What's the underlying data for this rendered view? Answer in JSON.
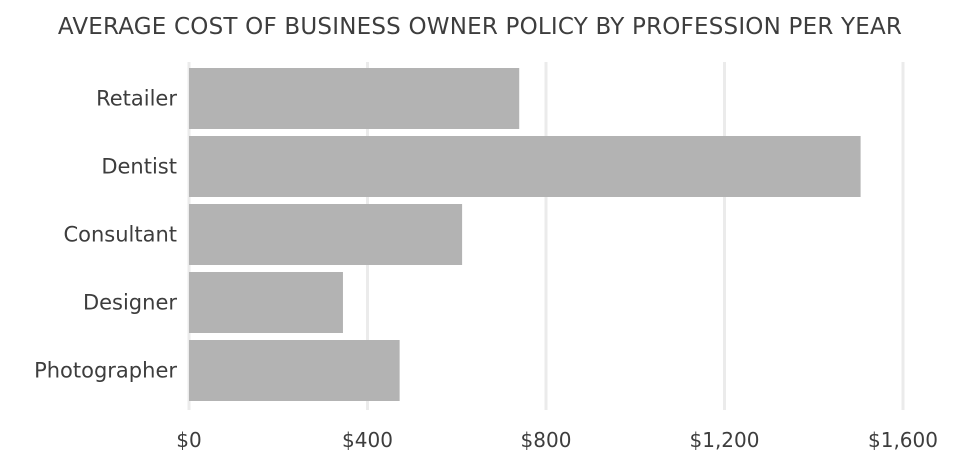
{
  "chart_data": {
    "type": "bar",
    "orientation": "horizontal",
    "title": "AVERAGE COST OF BUSINESS OWNER POLICY BY PROFESSION PER YEAR",
    "categories": [
      "Retailer",
      "Dentist",
      "Consultant",
      "Designer",
      "Photographer"
    ],
    "values": [
      740,
      1505,
      612,
      345,
      472
    ],
    "xlim": [
      0,
      1600
    ],
    "xticks": [
      0,
      400,
      800,
      1200,
      1600
    ],
    "xtick_labels": [
      "$0",
      "$400",
      "$800",
      "$1,200",
      "$1,600"
    ],
    "grid": "vertical",
    "bar_color": "#b3b3b3",
    "grid_color": "#ebebeb",
    "xlabel": "",
    "ylabel": ""
  }
}
